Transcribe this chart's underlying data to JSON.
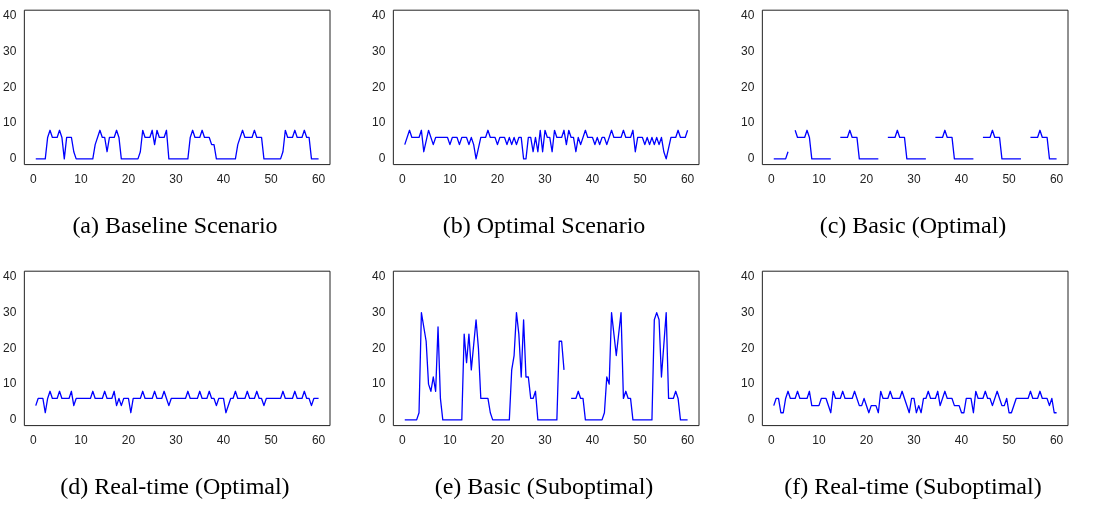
{
  "chart_data": [
    {
      "type": "line",
      "title": "(a) Baseline Scenario",
      "color": "#0000ff",
      "xlim": [
        -1.9,
        62.4
      ],
      "xticks": [
        0,
        10,
        20,
        30,
        40,
        50,
        60
      ],
      "ylim": [
        -1.6,
        41.6
      ],
      "yticks": [
        0,
        10,
        20,
        30,
        40
      ],
      "grid": false,
      "x": [
        0.5,
        2.5,
        3,
        3.5,
        4,
        5,
        5.5,
        6,
        6.5,
        7,
        8,
        8.5,
        9,
        12.5,
        13,
        14,
        14.5,
        15,
        15.5,
        16,
        17,
        17.5,
        18,
        18.5,
        22,
        22.5,
        23,
        23.5,
        24.5,
        25,
        25.5,
        26,
        26.5,
        27.5,
        28,
        28.5,
        32.5,
        33,
        33.5,
        34,
        35,
        35.5,
        36,
        37,
        37.5,
        38,
        38.5,
        42.5,
        43,
        44,
        44.5,
        46,
        46.5,
        47,
        48,
        48.5,
        52,
        52.5,
        53,
        53.5,
        54.5,
        55,
        55.5,
        56.5,
        57,
        57.5,
        58,
        58.5,
        60
      ],
      "values": [
        0,
        0,
        6,
        8,
        6,
        6,
        8,
        6,
        0,
        6,
        6,
        2,
        0,
        0,
        4,
        8,
        6,
        6,
        2,
        6,
        6,
        8,
        6,
        0,
        0,
        2,
        8,
        6,
        6,
        8,
        4,
        8,
        6,
        6,
        8,
        0,
        0,
        6,
        8,
        6,
        6,
        8,
        6,
        6,
        4,
        4,
        0,
        0,
        4,
        8,
        6,
        6,
        8,
        6,
        6,
        0,
        0,
        2,
        8,
        6,
        6,
        8,
        6,
        6,
        8,
        6,
        6,
        0,
        0
      ]
    },
    {
      "type": "line",
      "title": "(b) Optimal Scenario",
      "color": "#0000ff",
      "xlim": [
        -1.9,
        62.4
      ],
      "xticks": [
        0,
        10,
        20,
        30,
        40,
        50,
        60
      ],
      "ylim": [
        -1.6,
        41.6
      ],
      "yticks": [
        0,
        10,
        20,
        30,
        40
      ],
      "grid": false,
      "x": [
        0.5,
        1.5,
        2,
        3.5,
        4,
        4.5,
        5.5,
        6.5,
        7,
        9.5,
        10,
        10.5,
        11.5,
        12,
        12.5,
        13.5,
        14,
        14.5,
        15,
        15.5,
        16.5,
        17.5,
        18,
        18.5,
        19.5,
        20,
        20.5,
        21.5,
        22,
        22.5,
        23,
        23.5,
        24,
        24.5,
        25,
        25.5,
        26,
        26.5,
        27,
        27.5,
        28,
        28.5,
        29,
        29.5,
        30,
        30.5,
        31,
        31.5,
        32,
        32.5,
        33.5,
        34,
        34.5,
        35,
        35.5,
        36,
        36.5,
        37,
        37.5,
        38.5,
        39,
        40,
        40.5,
        41,
        41.5,
        42,
        42.5,
        43,
        44,
        44.5,
        46,
        46.5,
        47,
        48,
        48.5,
        49,
        49.5,
        50.5,
        51,
        51.5,
        52,
        52.5,
        53,
        53.5,
        54,
        54.5,
        55,
        55.5,
        56.5,
        57.5,
        58,
        58.5,
        59.5,
        60
      ],
      "values": [
        4,
        8,
        6,
        6,
        8,
        2,
        8,
        4,
        6,
        6,
        4,
        6,
        6,
        4,
        6,
        6,
        4,
        6,
        4,
        0,
        6,
        6,
        8,
        6,
        6,
        4,
        6,
        6,
        4,
        6,
        4,
        6,
        4,
        6,
        6,
        0,
        0,
        6,
        6,
        2,
        6,
        2,
        8,
        2,
        8,
        6,
        6,
        2,
        8,
        6,
        6,
        8,
        4,
        8,
        6,
        6,
        2,
        6,
        4,
        8,
        6,
        6,
        4,
        6,
        4,
        6,
        6,
        4,
        8,
        6,
        6,
        8,
        6,
        6,
        8,
        2,
        6,
        6,
        4,
        6,
        4,
        6,
        4,
        6,
        4,
        6,
        2,
        0,
        6,
        6,
        8,
        6,
        6,
        8
      ]
    },
    {
      "type": "line",
      "title": "(c) Basic (Optimal)",
      "color": "#0000ff",
      "xlim": [
        -1.9,
        62.4
      ],
      "xticks": [
        0,
        10,
        20,
        30,
        40,
        50,
        60
      ],
      "ylim": [
        -1.6,
        41.6
      ],
      "yticks": [
        0,
        10,
        20,
        30,
        40
      ],
      "grid": false,
      "x": [
        0.5,
        3,
        3.5,
        4,
        4.5,
        5,
        5.5,
        7,
        7.5,
        8,
        8.5,
        12.5,
        13.5,
        14,
        14.5,
        16,
        16.5,
        17,
        18,
        18.5,
        22.5,
        23.5,
        24,
        24.5,
        26,
        26.5,
        27,
        28,
        28.5,
        32.5,
        33.5,
        34,
        34.5,
        36,
        36.5,
        37,
        38,
        38.5,
        42.5,
        43.5,
        44,
        44.5,
        46,
        46.5,
        47,
        48,
        48.5,
        52.5,
        53.5,
        54,
        54.5,
        56,
        56.5,
        57,
        58,
        58.5,
        60
      ],
      "values": [
        0,
        0,
        2,
        null,
        null,
        8,
        6,
        6,
        8,
        6,
        0,
        0,
        null,
        null,
        6,
        6,
        8,
        6,
        6,
        0,
        0,
        null,
        null,
        6,
        6,
        8,
        6,
        6,
        0,
        0,
        null,
        null,
        6,
        6,
        8,
        6,
        6,
        0,
        0,
        null,
        null,
        6,
        6,
        8,
        6,
        6,
        0,
        0,
        null,
        null,
        6,
        6,
        8,
        6,
        6,
        0,
        0
      ]
    },
    {
      "type": "line",
      "title": "(d) Real-time (Optimal)",
      "color": "#0000ff",
      "xlim": [
        -1.9,
        62.4
      ],
      "xticks": [
        0,
        10,
        20,
        30,
        40,
        50,
        60
      ],
      "ylim": [
        -1.6,
        41.6
      ],
      "yticks": [
        0,
        10,
        20,
        30,
        40
      ],
      "grid": false,
      "x": [
        0.5,
        1,
        2,
        2.5,
        3,
        3.5,
        4,
        5,
        5.5,
        6,
        7.5,
        8,
        8.5,
        9,
        12,
        12.5,
        13,
        14.5,
        15,
        15.5,
        16.5,
        17,
        17.5,
        18,
        18.5,
        19,
        20,
        20.5,
        21,
        22.5,
        23,
        23.5,
        25,
        25.5,
        26,
        27,
        27.5,
        28,
        28.5,
        29,
        32,
        32.5,
        33,
        34.5,
        35,
        35.5,
        36.5,
        37,
        37.5,
        38,
        38.5,
        39,
        40,
        40.5,
        41.5,
        42,
        42.5,
        43,
        44.5,
        45,
        45.5,
        46.5,
        47,
        47.5,
        48,
        48.5,
        49,
        52,
        52.5,
        53,
        54.5,
        55,
        55.5,
        56.5,
        57,
        57.5,
        58,
        58.5,
        59,
        60
      ],
      "values": [
        4,
        6,
        6,
        2,
        6,
        8,
        6,
        6,
        8,
        6,
        6,
        8,
        4,
        6,
        6,
        8,
        6,
        6,
        8,
        6,
        6,
        8,
        4,
        6,
        4,
        6,
        6,
        2,
        6,
        6,
        8,
        6,
        6,
        8,
        6,
        6,
        8,
        6,
        4,
        6,
        6,
        8,
        6,
        6,
        8,
        6,
        6,
        8,
        6,
        6,
        4,
        6,
        6,
        2,
        6,
        6,
        8,
        6,
        6,
        8,
        6,
        6,
        8,
        6,
        6,
        4,
        6,
        6,
        8,
        6,
        6,
        8,
        6,
        6,
        8,
        6,
        6,
        4,
        6,
        6
      ]
    },
    {
      "type": "line",
      "title": "(e) Basic (Suboptimal)",
      "color": "#0000ff",
      "xlim": [
        -1.9,
        62.4
      ],
      "xticks": [
        0,
        10,
        20,
        30,
        40,
        50,
        60
      ],
      "ylim": [
        -1.6,
        41.6
      ],
      "yticks": [
        0,
        10,
        20,
        30,
        40
      ],
      "grid": false,
      "x": [
        0.5,
        3,
        3.5,
        4,
        5,
        5.5,
        6,
        6.5,
        7,
        7.5,
        8,
        8.5,
        12.5,
        13,
        13.5,
        14,
        14.5,
        15.5,
        16,
        16.5,
        18,
        18.5,
        19,
        22.5,
        23,
        23.5,
        24,
        24.5,
        25,
        25.5,
        26,
        26.5,
        27,
        27.5,
        28,
        28.5,
        32.5,
        33,
        33.5,
        34,
        34.5,
        35,
        35.5,
        36.5,
        37,
        37.5,
        38,
        38.5,
        42,
        42.5,
        43,
        43.5,
        44,
        45,
        46,
        46.5,
        47,
        47.5,
        48,
        48.5,
        52.5,
        53,
        53.5,
        54,
        54.5,
        55.5,
        56,
        57,
        57.5,
        58,
        58.5,
        60
      ],
      "values": [
        0,
        0,
        2,
        30,
        22,
        10,
        8,
        12,
        8,
        26,
        6,
        0,
        0,
        24,
        16,
        24,
        14,
        28,
        20,
        6,
        6,
        2,
        0,
        0,
        14,
        18,
        30,
        24,
        12,
        28,
        12,
        12,
        6,
        6,
        8,
        0,
        0,
        22,
        22,
        14,
        null,
        null,
        6,
        6,
        8,
        6,
        6,
        0,
        0,
        2,
        12,
        10,
        30,
        18,
        30,
        6,
        8,
        6,
        6,
        0,
        0,
        28,
        30,
        28,
        12,
        30,
        6,
        6,
        8,
        6,
        0,
        0
      ]
    },
    {
      "type": "line",
      "title": "(f) Real-time (Suboptimal)",
      "color": "#0000ff",
      "xlim": [
        -1.9,
        62.4
      ],
      "xticks": [
        0,
        10,
        20,
        30,
        40,
        50,
        60
      ],
      "ylim": [
        -1.6,
        41.6
      ],
      "yticks": [
        0,
        10,
        20,
        30,
        40
      ],
      "grid": false,
      "x": [
        0.5,
        1,
        1.5,
        2,
        2.5,
        3,
        3.5,
        4,
        5,
        5.5,
        6,
        7.5,
        8,
        8.5,
        10,
        10.5,
        11.5,
        12.5,
        13,
        13.5,
        14.5,
        15,
        15.5,
        17,
        17.5,
        18,
        18.5,
        19,
        19.5,
        20.5,
        21,
        22,
        22.5,
        23,
        23.5,
        24.5,
        25,
        25.5,
        27,
        27.5,
        28,
        29,
        29.5,
        30,
        30.5,
        31,
        31.5,
        32,
        32.5,
        33,
        33.5,
        34.5,
        35,
        35.5,
        36.5,
        37,
        38,
        38.5,
        39.5,
        40,
        40.5,
        41,
        42,
        42.5,
        43,
        43.5,
        44.5,
        45,
        45.5,
        46,
        46.5,
        47.5,
        48,
        48.5,
        49,
        49.5,
        50,
        50.5,
        51.5,
        54,
        54.5,
        55,
        56,
        56.5,
        57,
        58,
        58.5,
        59,
        59.5,
        60
      ],
      "values": [
        4,
        6,
        6,
        2,
        2,
        6,
        8,
        6,
        6,
        8,
        6,
        6,
        8,
        4,
        4,
        6,
        6,
        2,
        8,
        6,
        6,
        8,
        6,
        6,
        8,
        6,
        4,
        4,
        6,
        2,
        4,
        4,
        2,
        8,
        6,
        6,
        8,
        6,
        6,
        8,
        6,
        2,
        6,
        6,
        2,
        4,
        2,
        6,
        6,
        8,
        6,
        6,
        8,
        4,
        8,
        6,
        6,
        4,
        4,
        2,
        2,
        6,
        6,
        2,
        8,
        6,
        6,
        8,
        6,
        6,
        4,
        8,
        6,
        4,
        4,
        6,
        2,
        2,
        6,
        6,
        8,
        6,
        6,
        8,
        6,
        6,
        4,
        6,
        2,
        2
      ]
    }
  ]
}
